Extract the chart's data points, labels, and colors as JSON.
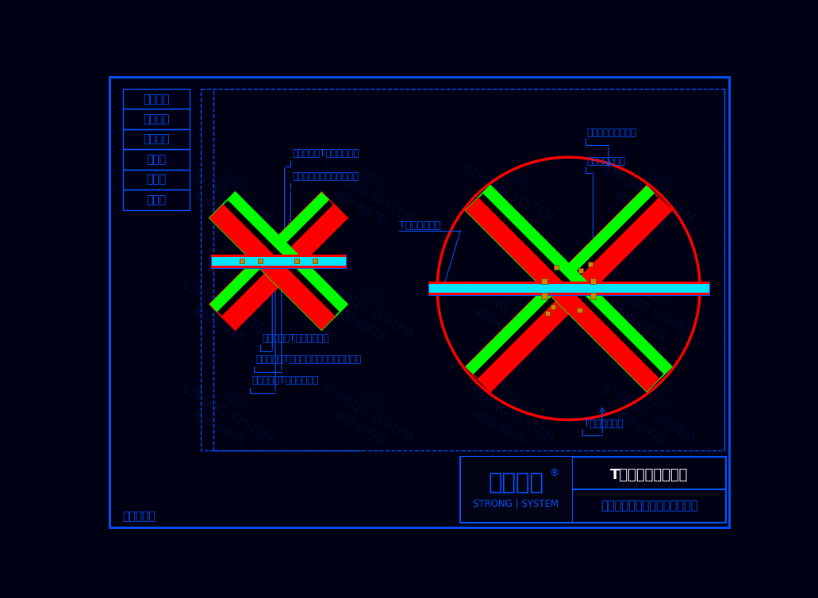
{
  "bg_color": "#000014",
  "border_color": "#0055ff",
  "text_color": "#0055ff",
  "red_color": "#ff0000",
  "green_color": "#00ff00",
  "cyan_color": "#00e5ff",
  "white_color": "#ffffff",
  "orange_color": "#cc8800",
  "dark_blue": "#000030",
  "wm_color": "#0a1a55",
  "title": "T型精制钢转接中心",
  "company": "西创金属科技（江苏）有限公司",
  "brand": "西创系统",
  "brand_sub": "STRONG | SYSTEM",
  "patent": "专利产品！",
  "labels_left": [
    "安全防火",
    "环保节能",
    "超级防腐",
    "大跨度",
    "大通透",
    "更纤细"
  ]
}
